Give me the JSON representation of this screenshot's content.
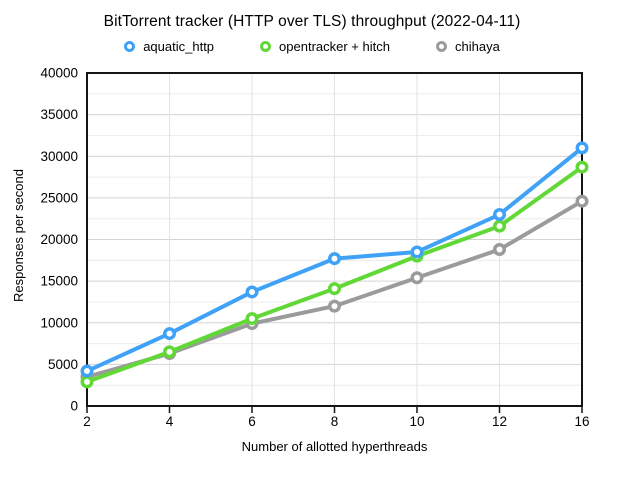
{
  "chart_data": {
    "type": "line",
    "title": "BitTorrent tracker (HTTP over TLS) throughput (2022-04-11)",
    "xlabel": "Number of allotted hyperthreads",
    "ylabel": "Responses per second",
    "categories": [
      2,
      4,
      6,
      8,
      10,
      12,
      16
    ],
    "series": [
      {
        "name": "aquatic_http",
        "color": "#3FA2F7",
        "values": [
          4200,
          8700,
          13700,
          17700,
          18500,
          23000,
          31000
        ]
      },
      {
        "name": "opentracker + hitch",
        "color": "#61D836",
        "values": [
          2900,
          6500,
          10500,
          14100,
          18000,
          21600,
          28700
        ]
      },
      {
        "name": "chihaya",
        "color": "#9B9B9B",
        "values": [
          3500,
          6300,
          9900,
          12000,
          15400,
          18800,
          24600
        ]
      }
    ],
    "ylim": [
      0,
      40000
    ],
    "y_major_step": 5000,
    "y_minor_step": 2500,
    "y_tick_labels": [
      "0",
      "5000",
      "10000",
      "15000",
      "20000",
      "25000",
      "30000",
      "35000",
      "40000"
    ],
    "x_tick_labels": [
      "2",
      "4",
      "6",
      "8",
      "10",
      "12",
      "16"
    ],
    "grid": true,
    "legend_position": "top",
    "marker": "open-circle",
    "colors": {
      "axis": "#141414",
      "major_gridline": "#d4d4d4",
      "minor_gridline": "#ececec",
      "vertical_gridline": "#e2e2e2",
      "marker_fill": "#ffffff"
    }
  }
}
